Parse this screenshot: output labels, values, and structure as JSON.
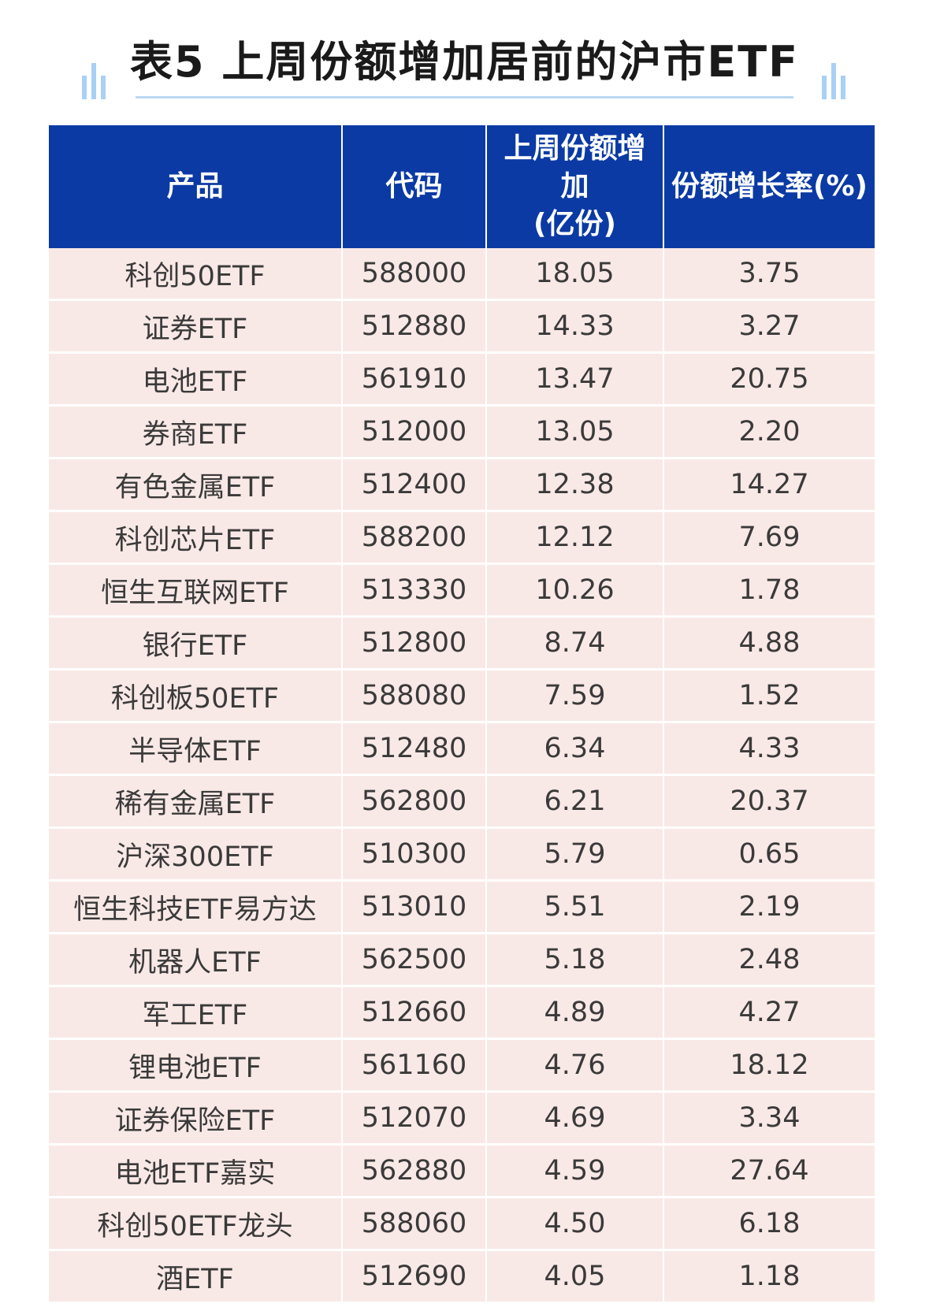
{
  "title": "表5  上周份额增加居前的沪市ETF",
  "table": {
    "headers": [
      "产品",
      "代码",
      "上周份额增加\n(亿份)",
      "份额增长率(%)"
    ],
    "rows": [
      [
        "科创50ETF",
        "588000",
        "18.05",
        "3.75"
      ],
      [
        "证券ETF",
        "512880",
        "14.33",
        "3.27"
      ],
      [
        "电池ETF",
        "561910",
        "13.47",
        "20.75"
      ],
      [
        "券商ETF",
        "512000",
        "13.05",
        "2.20"
      ],
      [
        "有色金属ETF",
        "512400",
        "12.38",
        "14.27"
      ],
      [
        "科创芯片ETF",
        "588200",
        "12.12",
        "7.69"
      ],
      [
        "恒生互联网ETF",
        "513330",
        "10.26",
        "1.78"
      ],
      [
        "银行ETF",
        "512800",
        "8.74",
        "4.88"
      ],
      [
        "科创板50ETF",
        "588080",
        "7.59",
        "1.52"
      ],
      [
        "半导体ETF",
        "512480",
        "6.34",
        "4.33"
      ],
      [
        "稀有金属ETF",
        "562800",
        "6.21",
        "20.37"
      ],
      [
        "沪深300ETF",
        "510300",
        "5.79",
        "0.65"
      ],
      [
        "恒生科技ETF易方达",
        "513010",
        "5.51",
        "2.19"
      ],
      [
        "机器人ETF",
        "562500",
        "5.18",
        "2.48"
      ],
      [
        "军工ETF",
        "512660",
        "4.89",
        "4.27"
      ],
      [
        "锂电池ETF",
        "561160",
        "4.76",
        "18.12"
      ],
      [
        "证券保险ETF",
        "512070",
        "4.69",
        "3.34"
      ],
      [
        "电池ETF嘉实",
        "562880",
        "4.59",
        "27.64"
      ],
      [
        "科创50ETF龙头",
        "588060",
        "4.50",
        "6.18"
      ],
      [
        "酒ETF",
        "512690",
        "4.05",
        "1.18"
      ]
    ]
  },
  "colors": {
    "header_bg": "#0b3aa4",
    "row_bg": "#f9e9e6",
    "accent": "#a9d0f5"
  }
}
